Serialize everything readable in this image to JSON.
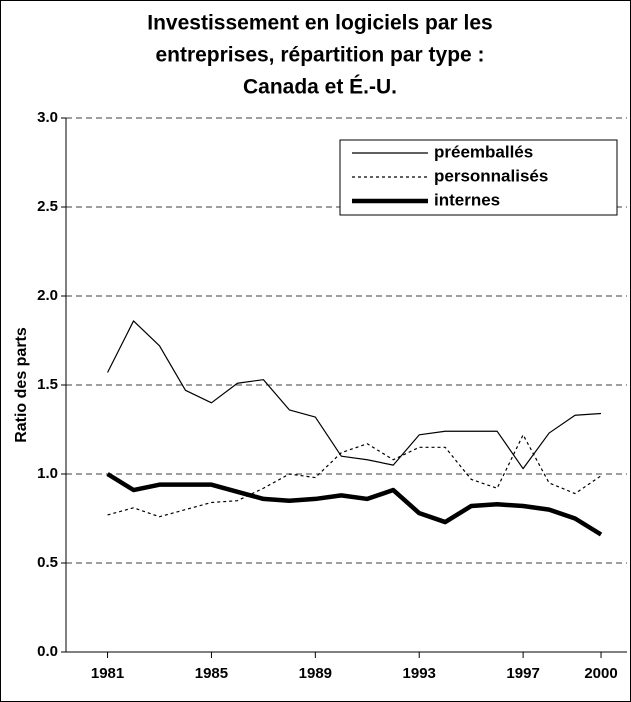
{
  "chart_data": {
    "type": "line",
    "title": [
      "Investissement en logiciels par les",
      "entreprises, répartition par type :",
      "Canada et É.-U."
    ],
    "y_label": "Ratio des parts",
    "x": [
      1981,
      1982,
      1983,
      1984,
      1985,
      1986,
      1987,
      1988,
      1989,
      1990,
      1991,
      1992,
      1993,
      1994,
      1995,
      1996,
      1997,
      1998,
      1999,
      2000
    ],
    "xlim": [
      1979.4,
      2001
    ],
    "xticks": [
      1981,
      1985,
      1989,
      1993,
      1997,
      2000
    ],
    "ylim": [
      0,
      3
    ],
    "yticks": [
      {
        "value": 0,
        "label": "0.0"
      },
      0.5,
      {
        "value": 1,
        "label": "1.0"
      },
      1.5,
      {
        "value": 2,
        "label": "2.0"
      },
      2.5,
      {
        "value": 3,
        "label": "3.0"
      }
    ],
    "grid": true,
    "legend": "top-right",
    "series": [
      {
        "name": "préemballés",
        "color": "#000000",
        "line_width": 1.2,
        "dashed": false,
        "values": [
          1.57,
          1.86,
          1.72,
          1.47,
          1.4,
          1.51,
          1.53,
          1.36,
          1.32,
          1.1,
          1.08,
          1.05,
          1.22,
          1.24,
          1.24,
          1.24,
          1.03,
          1.23,
          1.33,
          1.34
        ]
      },
      {
        "name": "personnalisés",
        "color": "#000000",
        "line_width": 1.2,
        "dashed": true,
        "values": [
          0.77,
          0.81,
          0.76,
          0.8,
          0.84,
          0.85,
          0.92,
          1.0,
          0.98,
          1.12,
          1.17,
          1.08,
          1.15,
          1.15,
          0.97,
          0.92,
          1.22,
          0.95,
          0.89,
          0.99
        ]
      },
      {
        "name": "internes",
        "color": "#000000",
        "line_width": 4.5,
        "dashed": false,
        "values": [
          1.0,
          0.91,
          0.94,
          0.94,
          0.94,
          0.9,
          0.86,
          0.85,
          0.86,
          0.88,
          0.86,
          0.91,
          0.78,
          0.73,
          0.82,
          0.83,
          0.82,
          0.8,
          0.75,
          0.66
        ]
      }
    ]
  }
}
